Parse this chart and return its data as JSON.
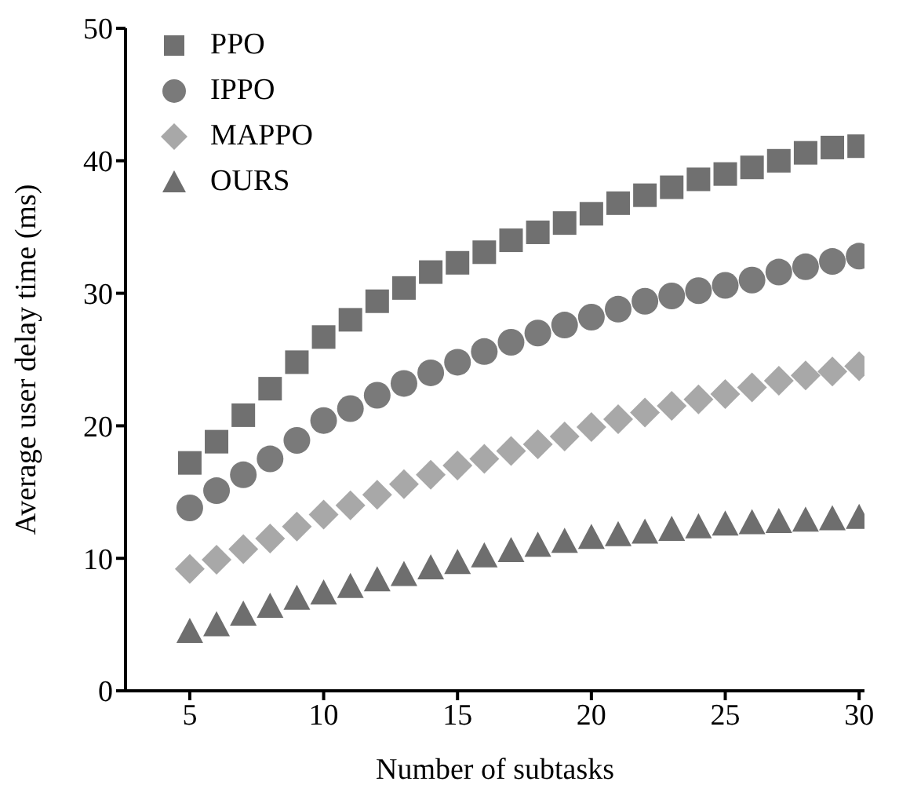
{
  "chart_data": {
    "type": "scatter",
    "xlabel": "Number of subtasks",
    "ylabel": "Average user delay time (ms)",
    "x": [
      5,
      6,
      7,
      8,
      9,
      10,
      11,
      12,
      13,
      14,
      15,
      16,
      17,
      18,
      19,
      20,
      21,
      22,
      23,
      24,
      25,
      26,
      27,
      28,
      29,
      30
    ],
    "xlim": [
      2.6,
      30.2
    ],
    "xticks": [
      5,
      10,
      15,
      20,
      25,
      30
    ],
    "ylim": [
      0,
      50
    ],
    "yticks": [
      0,
      10,
      20,
      30,
      40,
      50
    ],
    "grid": false,
    "legend": "top left",
    "series": [
      {
        "name": "PPO",
        "color": "#707070",
        "marker": "square",
        "values": [
          17.2,
          18.8,
          20.8,
          22.8,
          24.8,
          26.7,
          28.0,
          29.4,
          30.4,
          31.6,
          32.3,
          33.1,
          34.0,
          34.6,
          35.3,
          36.0,
          36.8,
          37.4,
          38.0,
          38.6,
          39.0,
          39.5,
          40.0,
          40.6,
          41.0,
          41.1
        ]
      },
      {
        "name": "IPPO",
        "color": "#7a7a7a",
        "marker": "circle",
        "values": [
          13.8,
          15.1,
          16.3,
          17.5,
          18.9,
          20.4,
          21.3,
          22.3,
          23.2,
          24.0,
          24.8,
          25.6,
          26.3,
          27.0,
          27.6,
          28.2,
          28.8,
          29.4,
          29.8,
          30.2,
          30.6,
          31.0,
          31.6,
          32.0,
          32.4,
          32.8
        ]
      },
      {
        "name": "MAPPO",
        "color": "#a8a8a8",
        "marker": "diamond",
        "values": [
          9.2,
          9.9,
          10.7,
          11.5,
          12.4,
          13.3,
          14.0,
          14.8,
          15.6,
          16.3,
          17.0,
          17.5,
          18.1,
          18.6,
          19.2,
          19.9,
          20.5,
          21.0,
          21.5,
          22.0,
          22.4,
          22.9,
          23.4,
          23.8,
          24.1,
          24.5
        ]
      },
      {
        "name": "OURS",
        "color": "#6e6e6e",
        "marker": "triangle",
        "values": [
          4.5,
          5.0,
          5.8,
          6.4,
          7.0,
          7.4,
          7.9,
          8.4,
          8.8,
          9.3,
          9.7,
          10.2,
          10.6,
          11.0,
          11.3,
          11.6,
          11.8,
          12.0,
          12.2,
          12.4,
          12.6,
          12.7,
          12.8,
          12.9,
          13.0,
          13.1
        ]
      }
    ]
  }
}
